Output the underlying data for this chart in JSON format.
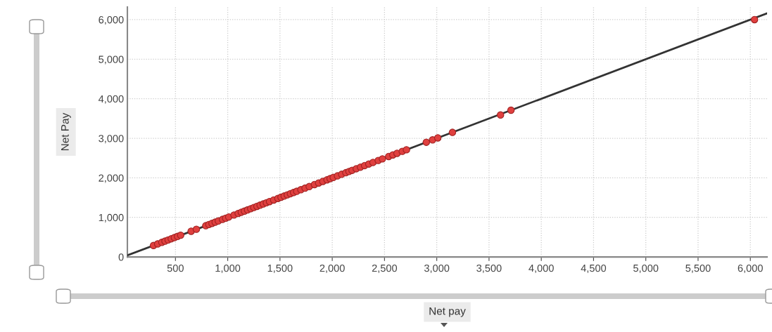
{
  "chart_data": {
    "type": "scatter",
    "xlabel": "Net pay",
    "ylabel": "Net Pay",
    "xlim": [
      40,
      6160
    ],
    "ylim": [
      0,
      6320
    ],
    "xticks": [
      500,
      {
        "value": 1000,
        "label": "1,000"
      },
      {
        "value": 1500,
        "label": "1,500"
      },
      {
        "value": 2000,
        "label": "2,000"
      },
      {
        "value": 2500,
        "label": "2,500"
      },
      {
        "value": 3000,
        "label": "3,000"
      },
      {
        "value": 3500,
        "label": "3,500"
      },
      {
        "value": 4000,
        "label": "4,000"
      },
      {
        "value": 4500,
        "label": "4,500"
      },
      {
        "value": 5000,
        "label": "5,000"
      },
      {
        "value": 5500,
        "label": "5,500"
      },
      {
        "value": 6000,
        "label": "6,000"
      }
    ],
    "yticks": [
      0,
      {
        "value": 1000,
        "label": "1,000"
      },
      {
        "value": 2000,
        "label": "2,000"
      },
      {
        "value": 3000,
        "label": "3,000"
      },
      {
        "value": 4000,
        "label": "4,000"
      },
      {
        "value": 5000,
        "label": "5,000"
      },
      {
        "value": 6000,
        "label": "6,000"
      }
    ],
    "grid": true,
    "series": [
      {
        "type": "line",
        "color": "#333333",
        "x": [
          40,
          6160
        ],
        "values": [
          40,
          6160
        ]
      },
      {
        "marker": "circle",
        "color": "#e0403f",
        "x": [
          290,
          330,
          370,
          400,
          430,
          460,
          490,
          520,
          550,
          650,
          700,
          790,
          820,
          850,
          880,
          910,
          950,
          980,
          1010,
          1060,
          1100,
          1130,
          1160,
          1190,
          1220,
          1250,
          1280,
          1310,
          1340,
          1370,
          1400,
          1440,
          1480,
          1510,
          1540,
          1570,
          1600,
          1630,
          1660,
          1700,
          1740,
          1780,
          1830,
          1870,
          1910,
          1950,
          1980,
          2010,
          2050,
          2090,
          2130,
          2160,
          2190,
          2230,
          2270,
          2310,
          2350,
          2390,
          2440,
          2480,
          2540,
          2580,
          2620,
          2670,
          2710,
          2900,
          2960,
          3010,
          3150,
          3610,
          3710,
          6040
        ],
        "values": [
          290,
          330,
          370,
          400,
          430,
          460,
          490,
          520,
          550,
          650,
          700,
          790,
          820,
          850,
          880,
          910,
          950,
          980,
          1010,
          1060,
          1100,
          1130,
          1160,
          1190,
          1220,
          1250,
          1280,
          1310,
          1340,
          1370,
          1400,
          1440,
          1480,
          1510,
          1540,
          1570,
          1600,
          1630,
          1660,
          1700,
          1740,
          1780,
          1830,
          1870,
          1910,
          1950,
          1980,
          2010,
          2050,
          2090,
          2130,
          2160,
          2190,
          2230,
          2270,
          2310,
          2350,
          2390,
          2440,
          2480,
          2540,
          2580,
          2620,
          2670,
          2710,
          2900,
          2960,
          3010,
          3150,
          3590,
          3710,
          6000
        ]
      }
    ]
  }
}
